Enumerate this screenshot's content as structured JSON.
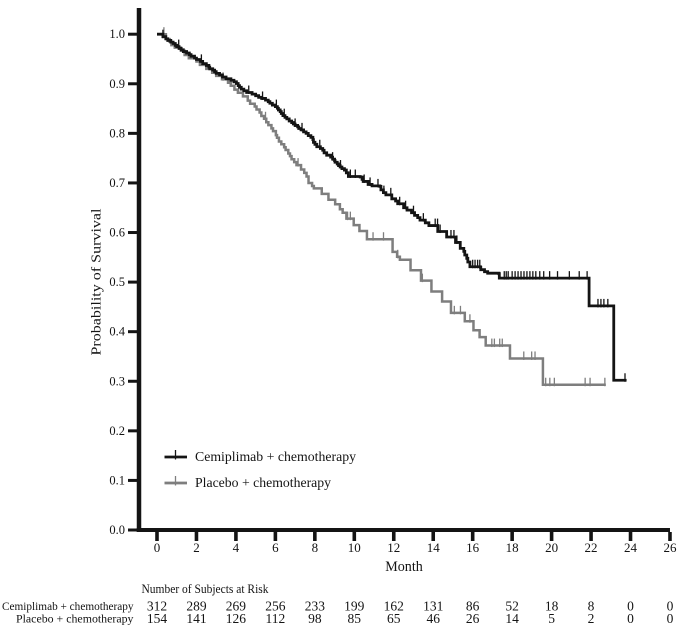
{
  "chart_data": {
    "type": "line",
    "subtype": "kaplan-meier-step",
    "title": "",
    "xlabel": "Month",
    "ylabel": "Probability of Survival",
    "xlim": [
      0,
      26
    ],
    "ylim": [
      0.0,
      1.0
    ],
    "x_ticks": [
      0,
      2,
      4,
      6,
      8,
      10,
      12,
      14,
      16,
      18,
      20,
      22,
      24,
      26
    ],
    "y_ticks": [
      "0.0",
      "0.1",
      "0.2",
      "0.3",
      "0.4",
      "0.5",
      "0.6",
      "0.7",
      "0.8",
      "0.9",
      "1.0"
    ],
    "grid": false,
    "legend_position": "inside-lower-left",
    "series": [
      {
        "name": "Cemiplimab + chemotherapy",
        "color": "#141414",
        "start": [
          0,
          1.0
        ],
        "end_time": 23.8,
        "steps": [
          [
            0.3,
            0.995
          ],
          [
            0.446,
            0.9908
          ],
          [
            0.546,
            0.9874
          ],
          [
            0.7,
            0.984
          ],
          [
            0.817,
            0.9812
          ],
          [
            0.927,
            0.9776
          ],
          [
            1.0,
            0.975
          ],
          [
            1.118,
            0.9713
          ],
          [
            1.225,
            0.9685
          ],
          [
            1.334,
            0.965
          ],
          [
            1.5,
            0.962
          ],
          [
            1.638,
            0.9588
          ],
          [
            1.726,
            0.9556
          ],
          [
            1.902,
            0.9518
          ],
          [
            2.0,
            0.949
          ],
          [
            2.202,
            0.9452
          ],
          [
            2.315,
            0.9406
          ],
          [
            2.5,
            0.937
          ],
          [
            2.632,
            0.9336
          ],
          [
            2.671,
            0.9302
          ],
          [
            2.824,
            0.9275
          ],
          [
            2.921,
            0.9244
          ],
          [
            3.0,
            0.921
          ],
          [
            3.171,
            0.9179
          ],
          [
            3.319,
            0.9137
          ],
          [
            3.5,
            0.91
          ],
          [
            3.746,
            0.9071
          ],
          [
            3.9,
            0.904
          ],
          [
            4.025,
            0.9005
          ],
          [
            4.114,
            0.8963
          ],
          [
            4.181,
            0.893
          ],
          [
            4.271,
            0.8893
          ],
          [
            4.4,
            0.886
          ],
          [
            4.544,
            0.8824
          ],
          [
            4.819,
            0.8792
          ],
          [
            5.0,
            0.876
          ],
          [
            5.152,
            0.8727
          ],
          [
            5.306,
            0.8704
          ],
          [
            5.5,
            0.867
          ],
          [
            5.638,
            0.8639
          ],
          [
            5.721,
            0.8607
          ],
          [
            5.846,
            0.8571
          ],
          [
            6.0,
            0.854
          ],
          [
            6.101,
            0.8506
          ],
          [
            6.153,
            0.8472
          ],
          [
            6.243,
            0.8438
          ],
          [
            6.3,
            0.84
          ],
          [
            6.381,
            0.8357
          ],
          [
            6.487,
            0.8322
          ],
          [
            6.58,
            0.8292
          ],
          [
            6.7,
            0.825
          ],
          [
            6.826,
            0.8218
          ],
          [
            6.911,
            0.8189
          ],
          [
            7.0,
            0.816
          ],
          [
            7.129,
            0.813
          ],
          [
            7.184,
            0.8098
          ],
          [
            7.3,
            0.807
          ],
          [
            7.43,
            0.803
          ],
          [
            7.557,
            0.7999
          ],
          [
            7.666,
            0.7954
          ],
          [
            7.8,
            0.792
          ],
          [
            7.901,
            0.7873
          ],
          [
            7.929,
            0.7819
          ],
          [
            8.005,
            0.7779
          ],
          [
            8.1,
            0.773
          ],
          [
            8.281,
            0.7694
          ],
          [
            8.4,
            0.766
          ],
          [
            8.469,
            0.7608
          ],
          [
            8.6,
            0.756
          ],
          [
            8.802,
            0.752
          ],
          [
            8.9,
            0.748
          ],
          [
            9.0,
            0.7451
          ],
          [
            9.024,
            0.7417
          ],
          [
            9.135,
            0.7383
          ],
          [
            9.2,
            0.735
          ],
          [
            9.284,
            0.7321
          ],
          [
            9.373,
            0.7289
          ],
          [
            9.5,
            0.726
          ],
          [
            9.597,
            0.7204
          ],
          [
            9.7,
            0.713
          ],
          [
            10.3,
            0.712
          ],
          [
            10.395,
            0.7072
          ],
          [
            10.45,
            0.703
          ],
          [
            10.7,
            0.697
          ],
          [
            10.9,
            0.694
          ],
          [
            11.3,
            0.693
          ],
          [
            11.35,
            0.686
          ],
          [
            11.475,
            0.6805
          ],
          [
            11.6,
            0.676
          ],
          [
            11.9,
            0.668
          ],
          [
            12.093,
            0.6636
          ],
          [
            12.2,
            0.658
          ],
          [
            12.5,
            0.65
          ],
          [
            12.672,
            0.6452
          ],
          [
            12.9,
            0.64
          ],
          [
            13.054,
            0.6345
          ],
          [
            13.213,
            0.6301
          ],
          [
            13.33,
            0.625
          ],
          [
            13.599,
            0.6196
          ],
          [
            13.78,
            0.614
          ],
          [
            14.23,
            0.602
          ],
          [
            14.68,
            0.591
          ],
          [
            15.13,
            0.58
          ],
          [
            15.37,
            0.568
          ],
          [
            15.55,
            0.562
          ],
          [
            15.599,
            0.5546
          ],
          [
            15.7,
            0.548
          ],
          [
            15.753,
            0.5406
          ],
          [
            15.86,
            0.531
          ],
          [
            16.39,
            0.53
          ],
          [
            16.41,
            0.525
          ],
          [
            16.6,
            0.521
          ],
          [
            16.76,
            0.518
          ],
          [
            17.33,
            0.517
          ],
          [
            17.35,
            0.508
          ],
          [
            21.9,
            0.452
          ],
          [
            23.15,
            0.302
          ]
        ],
        "censor_marks": [
          [
            0.3,
            0.995
          ],
          [
            1.1,
            0.975
          ],
          [
            2.25,
            0.9452
          ],
          [
            4.65,
            0.8824
          ],
          [
            5.35,
            0.8704
          ],
          [
            6.05,
            0.854
          ],
          [
            6.45,
            0.8357
          ],
          [
            7.0,
            0.816
          ],
          [
            7.35,
            0.807
          ],
          [
            8.25,
            0.773
          ],
          [
            8.9,
            0.748
          ],
          [
            9.3,
            0.7321
          ],
          [
            9.8,
            0.713
          ],
          [
            10.05,
            0.713
          ],
          [
            10.5,
            0.703
          ],
          [
            10.8,
            0.697
          ],
          [
            11.2,
            0.694
          ],
          [
            11.5,
            0.6805
          ],
          [
            11.85,
            0.676
          ],
          [
            12.3,
            0.658
          ],
          [
            12.6,
            0.65
          ],
          [
            13.0,
            0.64
          ],
          [
            13.5,
            0.625
          ],
          [
            14.1,
            0.614
          ],
          [
            14.22,
            0.614
          ],
          [
            14.35,
            0.602
          ],
          [
            14.9,
            0.591
          ],
          [
            15.05,
            0.591
          ],
          [
            15.2,
            0.58
          ],
          [
            16.0,
            0.531
          ],
          [
            16.12,
            0.531
          ],
          [
            16.25,
            0.531
          ],
          [
            16.36,
            0.531
          ],
          [
            17.6,
            0.508
          ],
          [
            17.7,
            0.508
          ],
          [
            17.8,
            0.508
          ],
          [
            18.0,
            0.508
          ],
          [
            18.15,
            0.508
          ],
          [
            18.3,
            0.508
          ],
          [
            18.45,
            0.508
          ],
          [
            18.6,
            0.508
          ],
          [
            18.75,
            0.508
          ],
          [
            18.9,
            0.508
          ],
          [
            19.05,
            0.508
          ],
          [
            19.2,
            0.508
          ],
          [
            19.4,
            0.508
          ],
          [
            19.6,
            0.508
          ],
          [
            19.9,
            0.508
          ],
          [
            20.3,
            0.508
          ],
          [
            20.9,
            0.508
          ],
          [
            21.4,
            0.508
          ],
          [
            21.8,
            0.508
          ],
          [
            22.35,
            0.452
          ],
          [
            22.5,
            0.452
          ],
          [
            22.65,
            0.452
          ],
          [
            22.85,
            0.452
          ],
          [
            23.72,
            0.302
          ]
        ]
      },
      {
        "name": "Placebo + chemotherapy",
        "color": "#7e7e7e",
        "start": [
          0,
          1.0
        ],
        "end_time": 22.75,
        "steps": [
          [
            0.45,
            0.99
          ],
          [
            0.64,
            0.9849
          ],
          [
            0.73,
            0.9779
          ],
          [
            0.9,
            0.973
          ],
          [
            1.216,
            0.9665
          ],
          [
            1.4,
            0.958
          ],
          [
            1.613,
            0.9515
          ],
          [
            2.0,
            0.945
          ],
          [
            2.175,
            0.9381
          ],
          [
            2.5,
            0.93
          ],
          [
            2.797,
            0.9222
          ],
          [
            3.0,
            0.916
          ],
          [
            3.295,
            0.9091
          ],
          [
            3.6,
            0.902
          ],
          [
            3.739,
            0.8961
          ],
          [
            3.924,
            0.8881
          ],
          [
            4.1,
            0.882
          ],
          [
            4.357,
            0.8746
          ],
          [
            4.6,
            0.866
          ],
          [
            4.719,
            0.8597
          ],
          [
            4.952,
            0.8543
          ],
          [
            5.044,
            0.848
          ],
          [
            5.2,
            0.842
          ],
          [
            5.288,
            0.8351
          ],
          [
            5.426,
            0.8294
          ],
          [
            5.537,
            0.8223
          ],
          [
            5.644,
            0.8167
          ],
          [
            5.8,
            0.81
          ],
          [
            5.881,
            0.8044
          ],
          [
            6.025,
            0.7964
          ],
          [
            6.082,
            0.7911
          ],
          [
            6.18,
            0.7837
          ],
          [
            6.3,
            0.778
          ],
          [
            6.444,
            0.7721
          ],
          [
            6.518,
            0.7665
          ],
          [
            6.654,
            0.7594
          ],
          [
            6.74,
            0.754
          ],
          [
            6.819,
            0.7479
          ],
          [
            6.954,
            0.7419
          ],
          [
            7.07,
            0.736
          ],
          [
            7.3,
            0.727
          ],
          [
            7.462,
            0.7204
          ],
          [
            7.58,
            0.713
          ],
          [
            7.68,
            0.7
          ],
          [
            7.861,
            0.6938
          ],
          [
            7.95,
            0.689
          ],
          [
            8.35,
            0.678
          ],
          [
            8.69,
            0.666
          ],
          [
            9.03,
            0.657
          ],
          [
            9.27,
            0.647
          ],
          [
            9.41,
            0.64
          ],
          [
            9.6,
            0.628
          ],
          [
            9.97,
            0.615
          ],
          [
            10.26,
            0.603
          ],
          [
            10.64,
            0.5865
          ],
          [
            11.94,
            0.561
          ],
          [
            12.17,
            0.551
          ],
          [
            12.31,
            0.545
          ],
          [
            12.85,
            0.524
          ],
          [
            13.38,
            0.503
          ],
          [
            13.91,
            0.481
          ],
          [
            14.45,
            0.461
          ],
          [
            14.9,
            0.438
          ],
          [
            15.6,
            0.421
          ],
          [
            16.04,
            0.403
          ],
          [
            16.35,
            0.389
          ],
          [
            16.66,
            0.372
          ],
          [
            17.89,
            0.346
          ],
          [
            19.56,
            0.293
          ]
        ],
        "censor_marks": [
          [
            0.35,
            1.0
          ],
          [
            3.35,
            0.9091
          ],
          [
            5.5,
            0.8294
          ],
          [
            7.15,
            0.736
          ],
          [
            9.66,
            0.628
          ],
          [
            9.8,
            0.628
          ],
          [
            10.95,
            0.5865
          ],
          [
            11.48,
            0.5865
          ],
          [
            12.2,
            0.551
          ],
          [
            13.45,
            0.503
          ],
          [
            15.07,
            0.438
          ],
          [
            15.38,
            0.438
          ],
          [
            15.86,
            0.421
          ],
          [
            16.97,
            0.372
          ],
          [
            17.1,
            0.372
          ],
          [
            17.37,
            0.372
          ],
          [
            17.5,
            0.372
          ],
          [
            18.59,
            0.346
          ],
          [
            18.99,
            0.346
          ],
          [
            19.16,
            0.346
          ],
          [
            19.7,
            0.293
          ],
          [
            19.91,
            0.293
          ],
          [
            20.14,
            0.293
          ],
          [
            21.7,
            0.293
          ],
          [
            21.95,
            0.293
          ],
          [
            22.7,
            0.293
          ]
        ]
      }
    ],
    "risk_table": {
      "title": "Number of Subjects at Risk",
      "months": [
        0,
        2,
        4,
        6,
        8,
        10,
        12,
        14,
        16,
        18,
        20,
        22,
        24,
        26
      ],
      "rows": [
        {
          "label": "Cemiplimab + chemotherapy",
          "color": "#141414",
          "values": [
            312,
            289,
            269,
            256,
            233,
            199,
            162,
            131,
            86,
            52,
            18,
            8,
            0,
            0
          ]
        },
        {
          "label": "Placebo + chemotherapy",
          "color": "#7e7e7e",
          "values": [
            154,
            141,
            126,
            112,
            98,
            85,
            65,
            46,
            26,
            14,
            5,
            2,
            0,
            0
          ]
        }
      ]
    }
  }
}
